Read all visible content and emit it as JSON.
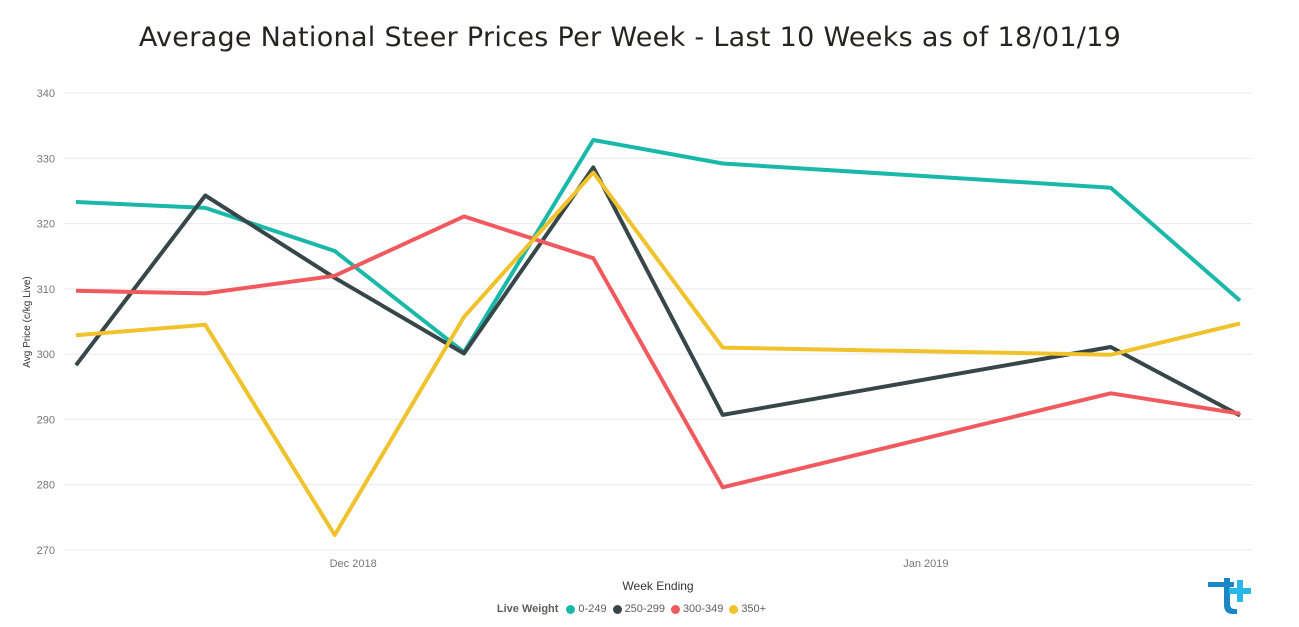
{
  "title": "Average National Steer Prices Per Week - Last 10 Weeks as of 18/01/19",
  "legend": {
    "title": "Live Weight"
  },
  "colors": {
    "0-249": "#1ab8a8",
    "250-299": "#374649",
    "300-349": "#f05a5f",
    "350+": "#f0c22c",
    "grid": "#e9e9e9",
    "axis_text": "#777777"
  },
  "logo": "tt-logo",
  "chart_data": {
    "type": "line",
    "title": "Average National Steer Prices Per Week - Last 10 Weeks as of 18/01/19",
    "xlabel": "Week Ending",
    "ylabel": "Avg Price (c/kg Live)",
    "ylim": [
      270,
      340
    ],
    "yticks": [
      270,
      280,
      290,
      300,
      310,
      320,
      330,
      340
    ],
    "grid": true,
    "legend_position": "bottom",
    "x": [
      "2018-11-16",
      "2018-11-23",
      "2018-11-30",
      "2018-12-07",
      "2018-12-14",
      "2018-12-21",
      "2019-01-11",
      "2019-01-18"
    ],
    "xticks": [
      {
        "date": "2018-12-01",
        "label": "Dec 2018"
      },
      {
        "date": "2019-01-01",
        "label": "Jan 2019"
      }
    ],
    "xlim": [
      "2018-11-16",
      "2019-01-18"
    ],
    "series": [
      {
        "name": "0-249",
        "values": [
          323.3,
          322.4,
          315.8,
          300.3,
          332.8,
          329.2,
          325.5,
          308.2
        ]
      },
      {
        "name": "250-299",
        "values": [
          298.3,
          324.3,
          311.7,
          300.1,
          328.6,
          290.7,
          301.1,
          290.6
        ]
      },
      {
        "name": "300-349",
        "values": [
          309.7,
          309.3,
          312.0,
          321.1,
          314.7,
          279.6,
          294.0,
          290.9
        ]
      },
      {
        "name": "350+",
        "values": [
          302.9,
          304.5,
          272.3,
          305.7,
          327.8,
          301.0,
          299.9,
          304.7
        ]
      }
    ]
  }
}
